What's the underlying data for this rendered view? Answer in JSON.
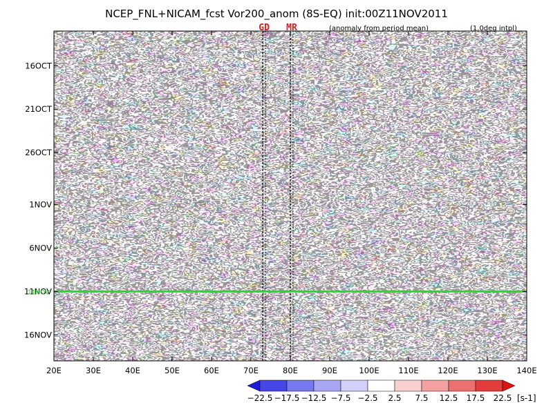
{
  "chart_data": {
    "type": "heatmap",
    "title": "NCEP_FNL+NICAM_fcst Vor200_anom (8S-EQ) init:00Z11NOV2011",
    "subtitle_left": "(anomaly from period mean)",
    "subtitle_right": "(1.0deg intpl)",
    "x_ticks": [
      "20E",
      "30E",
      "40E",
      "50E",
      "60E",
      "70E",
      "80E",
      "90E",
      "100E",
      "110E",
      "120E",
      "130E",
      "140E"
    ],
    "x_range": [
      20,
      140
    ],
    "y_ticks": [
      {
        "label": "16OCT",
        "day": 16
      },
      {
        "label": "21OCT",
        "day": 21
      },
      {
        "label": "26OCT",
        "day": 26
      },
      {
        "label": "1NOV",
        "day": 32
      },
      {
        "label": "6NOV",
        "day": 37
      },
      {
        "label": "11NOV",
        "day": 42
      },
      {
        "label": "16NOV",
        "day": 47
      }
    ],
    "y_range_days": [
      12,
      50
    ],
    "init_line": {
      "label": "11NOV",
      "day": 42,
      "color": "#22dd22"
    },
    "reference_lines": [
      {
        "label": "GD",
        "lon": 73
      },
      {
        "label": "MR",
        "lon": 80
      }
    ],
    "colorbar": {
      "labels": [
        "−22.5",
        "−17.5",
        "−12.5",
        "−7.5",
        "−2.5",
        "2.5",
        "7.5",
        "12.5",
        "17.5",
        "22.5"
      ],
      "unit": "[s-1]",
      "colors": [
        "#1c1cdc",
        "#4646e6",
        "#7878ee",
        "#a6a6f2",
        "#d0d0f8",
        "#ffffff",
        "#f8d0d0",
        "#f2a0a0",
        "#ec7070",
        "#e43c3c",
        "#dc1414"
      ]
    }
  }
}
